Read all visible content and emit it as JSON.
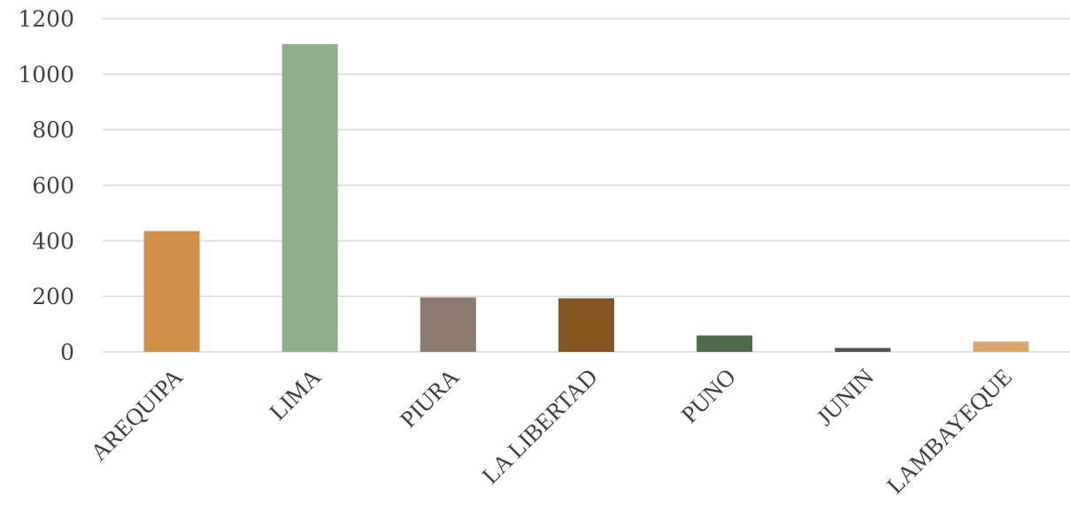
{
  "chart_data": {
    "type": "bar",
    "title": "",
    "xlabel": "",
    "ylabel": "",
    "categories": [
      "AREQUIPA",
      "LIMA",
      "PIURA",
      "LA LIBERTAD",
      "PUNO",
      "JUNIN",
      "LAMBAYEQUE"
    ],
    "values": [
      435,
      1108,
      196,
      193,
      59,
      14,
      37
    ],
    "colors": [
      "#d19049",
      "#8faf8b",
      "#8c7a6f",
      "#855720",
      "#4c6d48",
      "#5b4e45",
      "#d9a56b"
    ],
    "ylim": [
      0,
      1200
    ],
    "yticks": [
      "0",
      "200",
      "400",
      "600",
      "800",
      "1000",
      "1200"
    ],
    "ytick_values": [
      0,
      200,
      400,
      600,
      800,
      1000,
      1200
    ],
    "grid": true,
    "legend": "none"
  }
}
